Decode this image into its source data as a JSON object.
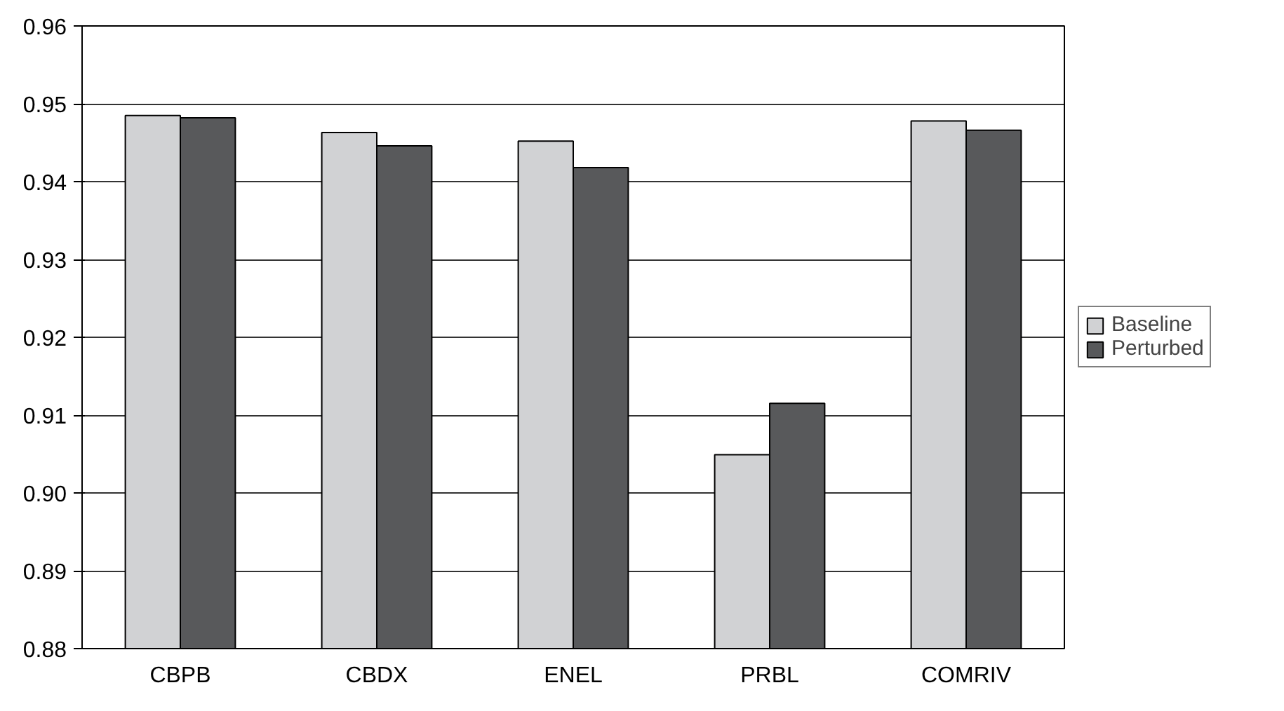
{
  "chart_data": {
    "type": "bar",
    "categories": [
      "CBPB",
      "CBDX",
      "ENEL",
      "PRBL",
      "COMRIV"
    ],
    "series": [
      {
        "name": "Baseline",
        "color": "#d1d2d4",
        "values": [
          0.9485,
          0.9463,
          0.9452,
          0.9049,
          0.9478
        ]
      },
      {
        "name": "Perturbed",
        "color": "#58595b",
        "values": [
          0.9482,
          0.9446,
          0.9418,
          0.9115,
          0.9466
        ]
      }
    ],
    "ylim": [
      0.88,
      0.96
    ],
    "yticks": [
      0.88,
      0.89,
      {
        "value": 0.9,
        "label": "0.90"
      },
      0.91,
      0.92,
      0.93,
      0.94,
      0.95,
      0.96
    ],
    "grid": "y",
    "legend": "right"
  }
}
